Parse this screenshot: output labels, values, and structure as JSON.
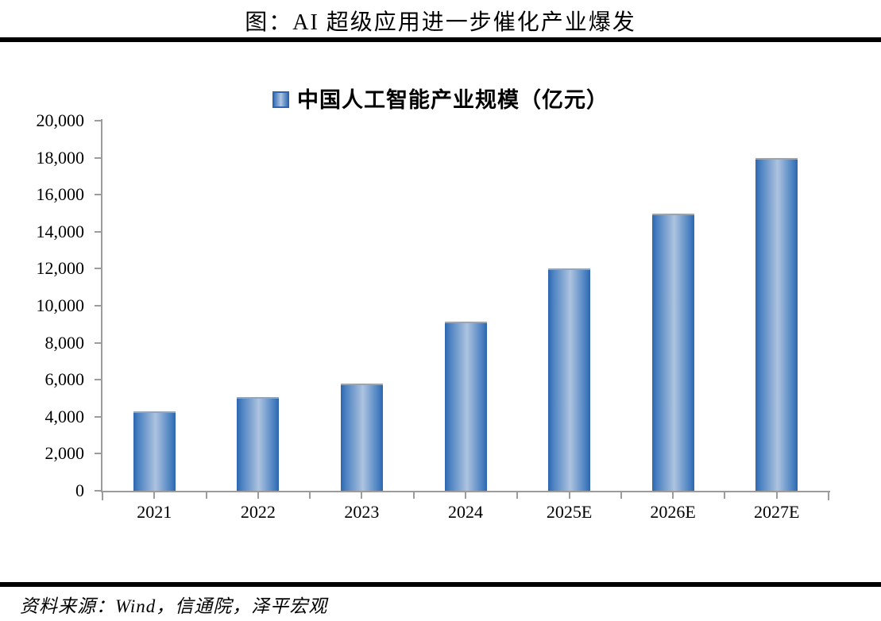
{
  "page": {
    "title": "图：AI 超级应用进一步催化产业爆发",
    "source": "资料来源：Wind，信通院，泽平宏观"
  },
  "chart_data": {
    "type": "bar",
    "title": "图：AI 超级应用进一步催化产业爆发",
    "legend": "中国人工智能产业规模（亿元）",
    "legend_position": "top-center",
    "categories": [
      "2021",
      "2022",
      "2023",
      "2024",
      "2025E",
      "2026E",
      "2027E"
    ],
    "values": [
      4300,
      5080,
      5784,
      9150,
      12000,
      15000,
      18000
    ],
    "xlabel": "",
    "ylabel": "",
    "ylim": [
      0,
      20000
    ],
    "y_tick_interval": 2000,
    "y_tick_labels": [
      "0",
      "2,000",
      "4,000",
      "6,000",
      "8,000",
      "10,000",
      "12,000",
      "14,000",
      "16,000",
      "18,000",
      "20,000"
    ],
    "grid": false,
    "colors": {
      "bar_edge": "#2d66ae",
      "bar_mid": "#aec4e0",
      "axis": "#9c9c9c",
      "text": "#000000",
      "rule": "#000000"
    }
  }
}
